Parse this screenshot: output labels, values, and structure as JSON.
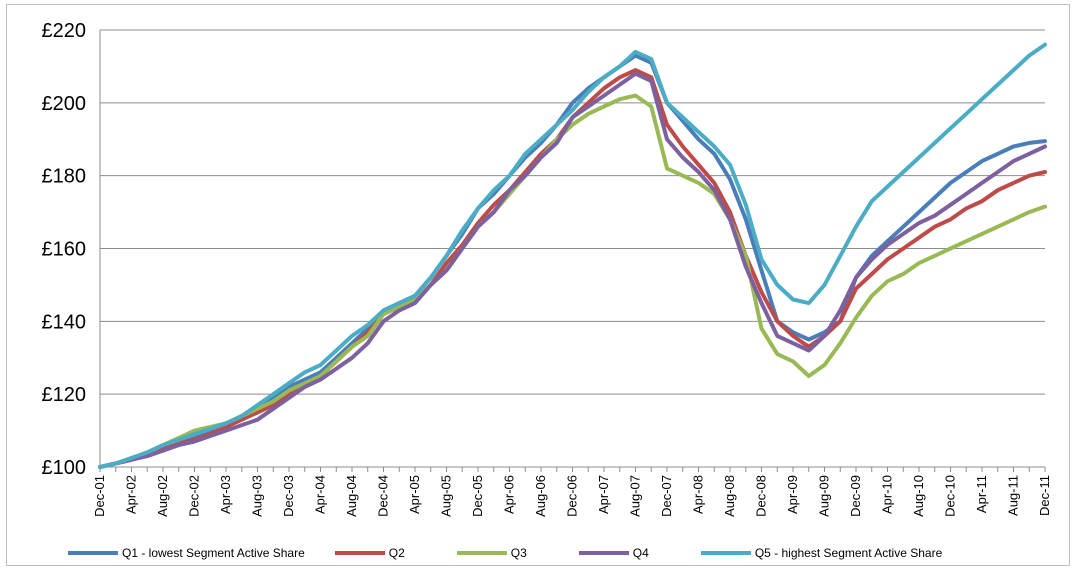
{
  "chart_data": {
    "type": "line",
    "title": "",
    "xlabel": "",
    "ylabel": "",
    "ylim": [
      100,
      220
    ],
    "yticks": [
      "£100",
      "£120",
      "£140",
      "£160",
      "£180",
      "£200",
      "£220"
    ],
    "grid": true,
    "legend_position": "bottom",
    "x": [
      "Dec-01",
      "Feb-02",
      "Apr-02",
      "Jun-02",
      "Aug-02",
      "Oct-02",
      "Dec-02",
      "Feb-03",
      "Apr-03",
      "Jun-03",
      "Aug-03",
      "Oct-03",
      "Dec-03",
      "Feb-04",
      "Apr-04",
      "Jun-04",
      "Aug-04",
      "Oct-04",
      "Dec-04",
      "Feb-05",
      "Apr-05",
      "Jun-05",
      "Aug-05",
      "Oct-05",
      "Dec-05",
      "Feb-06",
      "Apr-06",
      "Jun-06",
      "Aug-06",
      "Oct-06",
      "Dec-06",
      "Feb-07",
      "Apr-07",
      "Jun-07",
      "Aug-07",
      "Oct-07",
      "Dec-07",
      "Feb-08",
      "Apr-08",
      "Jun-08",
      "Aug-08",
      "Oct-08",
      "Dec-08",
      "Feb-09",
      "Apr-09",
      "Jun-09",
      "Aug-09",
      "Oct-09",
      "Dec-09",
      "Feb-10",
      "Apr-10",
      "Jun-10",
      "Aug-10",
      "Oct-10",
      "Dec-10",
      "Feb-11",
      "Apr-11",
      "Jun-11",
      "Aug-11",
      "Oct-11",
      "Dec-11"
    ],
    "x_tick_labels": [
      "Dec-01",
      "Apr-02",
      "Aug-02",
      "Dec-02",
      "Apr-03",
      "Aug-03",
      "Dec-03",
      "Apr-04",
      "Aug-04",
      "Dec-04",
      "Apr-05",
      "Aug-05",
      "Dec-05",
      "Apr-06",
      "Aug-06",
      "Dec-06",
      "Apr-07",
      "Aug-07",
      "Dec-07",
      "Apr-08",
      "Aug-08",
      "Dec-08",
      "Apr-09",
      "Aug-09",
      "Dec-09",
      "Apr-10",
      "Aug-10",
      "Dec-10",
      "Apr-11",
      "Aug-11",
      "Dec-11"
    ],
    "series": [
      {
        "name": "Q1 - lowest Segment Active Share",
        "color": "#4a7ebb",
        "values": [
          100,
          101,
          102,
          103.5,
          105,
          106.5,
          108,
          110,
          111.5,
          114,
          116,
          119,
          122,
          124,
          126,
          130,
          134,
          138,
          143,
          145,
          147,
          152,
          158,
          164,
          171,
          175,
          180,
          185,
          189,
          194,
          200,
          204,
          207,
          210,
          213,
          211,
          200,
          195,
          190,
          186,
          179,
          168,
          154,
          140,
          137,
          135,
          137,
          140,
          152,
          158,
          162,
          166,
          170,
          174,
          178,
          181,
          184,
          186,
          188,
          189,
          189.5
        ]
      },
      {
        "name": "Q2",
        "color": "#be4b48",
        "values": [
          100,
          101,
          102,
          103.5,
          105,
          106.5,
          107.5,
          109,
          111,
          113,
          115,
          117,
          120,
          123,
          125,
          129,
          133,
          137,
          142,
          144,
          146,
          150,
          156,
          161,
          167,
          172,
          176,
          181,
          186,
          190,
          196,
          200,
          204,
          207,
          209,
          207,
          194,
          188,
          183,
          178,
          170,
          158,
          148,
          140,
          136,
          133,
          136,
          140,
          149,
          153,
          157,
          160,
          163,
          166,
          168,
          171,
          173,
          176,
          178,
          180,
          181
        ]
      },
      {
        "name": "Q3",
        "color": "#98b954",
        "values": [
          100,
          101,
          102,
          104,
          106,
          108,
          110,
          111,
          112,
          114,
          116,
          118,
          121,
          123,
          125,
          129,
          133,
          136,
          142,
          144,
          146,
          150,
          154,
          160,
          166,
          170,
          175,
          180,
          185,
          190,
          194,
          197,
          199,
          201,
          202,
          199,
          182,
          180,
          178,
          175,
          168,
          158,
          138,
          131,
          129,
          125,
          128,
          134,
          141,
          147,
          151,
          153,
          156,
          158,
          160,
          162,
          164,
          166,
          168,
          170,
          171.5
        ]
      },
      {
        "name": "Q4",
        "color": "#7d60a0",
        "values": [
          100,
          101,
          102,
          103,
          104.5,
          106,
          107,
          108.5,
          110,
          111.5,
          113,
          116,
          119,
          122,
          124,
          127,
          130,
          134,
          140,
          143,
          145,
          150,
          154,
          160,
          166,
          170,
          176,
          180,
          185,
          189,
          196,
          199,
          202,
          205,
          208,
          206,
          190,
          185,
          181,
          176,
          168,
          155,
          145,
          136,
          134,
          132,
          136,
          143,
          152,
          157,
          161,
          164,
          167,
          169,
          172,
          175,
          178,
          181,
          184,
          186,
          188
        ]
      },
      {
        "name": "Q5 - highest Segment Active Share",
        "color": "#4bacc6",
        "values": [
          100,
          101,
          102.5,
          104,
          106,
          107.5,
          109,
          110.5,
          112,
          114,
          117,
          120,
          123,
          126,
          128,
          132,
          136,
          139,
          143,
          145,
          147,
          152,
          158,
          165,
          171,
          176,
          180,
          186,
          190,
          194,
          198,
          203,
          207,
          210,
          214,
          212,
          200,
          196,
          192,
          188,
          183,
          172,
          157,
          150,
          146,
          145,
          150,
          158,
          166,
          173,
          177,
          181,
          185,
          189,
          193,
          197,
          201,
          205,
          209,
          213,
          216
        ]
      }
    ]
  }
}
